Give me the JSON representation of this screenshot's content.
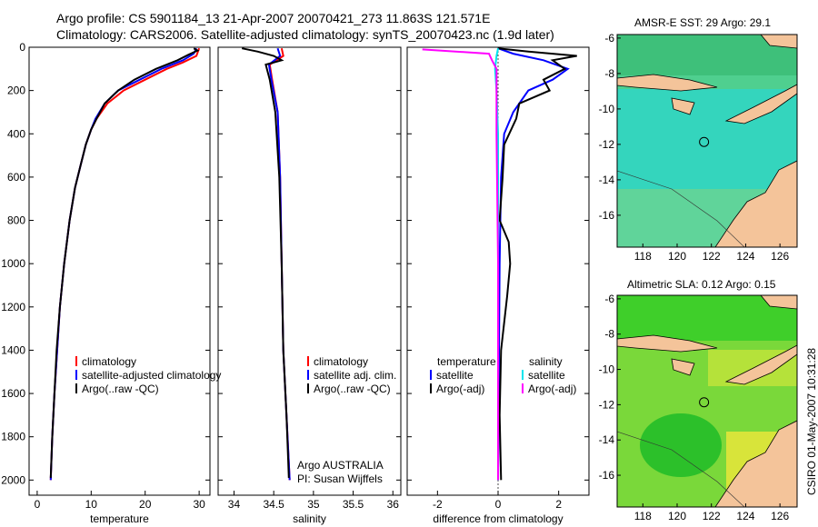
{
  "header": {
    "line1": "Argo profile: CS 5901184_13 21-Apr-2007 20070421_273 11.863S 121.571E",
    "line2": "Climatology: CARS2006. Satellite-adjusted climatology: synTS_20070423.nc (1.9d later)"
  },
  "credit": "CSIRO 01-May-2007 10:31:28",
  "colors": {
    "climatology": "#ff0000",
    "satellite": "#0000ff",
    "argo": "#000000",
    "sat_diff": "#00e5ee",
    "argo_adj": "#ff00ff"
  },
  "chart_data": [
    {
      "type": "line",
      "xlabel": "temperature",
      "ylabel": "",
      "xlim": [
        -1.5,
        32
      ],
      "ylim": [
        2070,
        0
      ],
      "xticks": [
        "0",
        "10",
        "20",
        "30"
      ],
      "yticks": [
        "0",
        "200",
        "400",
        "600",
        "800",
        "1000",
        "1200",
        "1400",
        "1600",
        "1800",
        "2000"
      ],
      "legend": [
        "climatology",
        "satellite-adjusted climatology",
        "Argo(..raw -QC)"
      ],
      "series": [
        {
          "name": "climatology",
          "color": "#ff0000",
          "points": [
            [
              30,
              5
            ],
            [
              29.5,
              40
            ],
            [
              27,
              70
            ],
            [
              24,
              100
            ],
            [
              20,
              150
            ],
            [
              16,
              200
            ],
            [
              13,
              260
            ],
            [
              11,
              330
            ],
            [
              10,
              380
            ],
            [
              9,
              450
            ],
            [
              8,
              550
            ],
            [
              7,
              650
            ],
            [
              6,
              800
            ],
            [
              5,
              1000
            ],
            [
              4.2,
              1200
            ],
            [
              3.7,
              1400
            ],
            [
              3.2,
              1600
            ],
            [
              2.8,
              1800
            ],
            [
              2.5,
              2000
            ]
          ]
        },
        {
          "name": "satellite-adjusted climatology",
          "color": "#0000ff",
          "points": [
            [
              29.5,
              5
            ],
            [
              29,
              30
            ],
            [
              27,
              60
            ],
            [
              23,
              100
            ],
            [
              19,
              150
            ],
            [
              15,
              200
            ],
            [
              12.5,
              260
            ],
            [
              10.8,
              330
            ],
            [
              10,
              380
            ],
            [
              9,
              450
            ],
            [
              8,
              550
            ],
            [
              7,
              650
            ],
            [
              6,
              800
            ],
            [
              5,
              1000
            ],
            [
              4.2,
              1200
            ],
            [
              3.7,
              1400
            ],
            [
              3.2,
              1600
            ],
            [
              2.8,
              1800
            ],
            [
              2.5,
              2000
            ]
          ]
        },
        {
          "name": "Argo(..raw -QC)",
          "color": "#000000",
          "points": [
            [
              29,
              5
            ],
            [
              29.7,
              15
            ],
            [
              28,
              35
            ],
            [
              26,
              60
            ],
            [
              22,
              100
            ],
            [
              18,
              150
            ],
            [
              15,
              200
            ],
            [
              12.5,
              260
            ],
            [
              11,
              330
            ],
            [
              10,
              380
            ],
            [
              9,
              450
            ],
            [
              8,
              550
            ],
            [
              7,
              650
            ],
            [
              6,
              800
            ],
            [
              5,
              1000
            ],
            [
              4.2,
              1200
            ],
            [
              3.6,
              1400
            ],
            [
              3.2,
              1600
            ],
            [
              2.8,
              1800
            ],
            [
              2.5,
              1990
            ]
          ]
        }
      ]
    },
    {
      "type": "line",
      "xlabel": "salinity",
      "ylabel": "",
      "xlim": [
        33.8,
        36.1
      ],
      "ylim": [
        2070,
        0
      ],
      "xticks": [
        "34",
        "34.5",
        "35",
        "35.5",
        "36"
      ],
      "legend": [
        "climatology",
        "satellite adj. clim.",
        "Argo(..raw -QC)"
      ],
      "annotation": [
        "Argo AUSTRALIA",
        "PI: Susan Wijffels"
      ],
      "series": [
        {
          "name": "climatology",
          "color": "#ff0000",
          "points": [
            [
              34.6,
              5
            ],
            [
              34.62,
              40
            ],
            [
              34.45,
              80
            ],
            [
              34.48,
              150
            ],
            [
              34.55,
              300
            ],
            [
              34.58,
              600
            ],
            [
              34.6,
              1000
            ],
            [
              34.62,
              1400
            ],
            [
              34.66,
              1700
            ],
            [
              34.7,
              2000
            ]
          ]
        },
        {
          "name": "satellite adj. clim.",
          "color": "#0000ff",
          "points": [
            [
              34.55,
              5
            ],
            [
              34.58,
              40
            ],
            [
              34.44,
              80
            ],
            [
              34.47,
              150
            ],
            [
              34.55,
              300
            ],
            [
              34.58,
              600
            ],
            [
              34.6,
              1000
            ],
            [
              34.62,
              1400
            ],
            [
              34.66,
              1700
            ],
            [
              34.7,
              2000
            ]
          ]
        },
        {
          "name": "Argo(..raw -QC)",
          "color": "#000000",
          "points": [
            [
              34.1,
              5
            ],
            [
              34.3,
              20
            ],
            [
              34.5,
              40
            ],
            [
              34.6,
              60
            ],
            [
              34.4,
              80
            ],
            [
              34.45,
              150
            ],
            [
              34.52,
              300
            ],
            [
              34.57,
              600
            ],
            [
              34.6,
              1000
            ],
            [
              34.62,
              1400
            ],
            [
              34.66,
              1700
            ],
            [
              34.69,
              1990
            ]
          ]
        }
      ]
    },
    {
      "type": "line",
      "xlabel": "difference from climatology",
      "ylabel": "",
      "xlim": [
        -3,
        3
      ],
      "ylim": [
        2070,
        0
      ],
      "xticks": [
        "-2",
        "0",
        "2"
      ],
      "legend_left_title": "temperature",
      "legend_right_title": "salinity",
      "legend": [
        "satellite",
        "Argo(-adj)",
        "satellite",
        "Argo(-adj)"
      ],
      "series": [
        {
          "name": "satellite",
          "quantity": "temperature",
          "color": "#0000ff",
          "points": [
            [
              0,
              5
            ],
            [
              0.5,
              30
            ],
            [
              1.5,
              60
            ],
            [
              2.3,
              100
            ],
            [
              1.8,
              150
            ],
            [
              1,
              200
            ],
            [
              0.5,
              300
            ],
            [
              0.2,
              400
            ],
            [
              0.1,
              600
            ],
            [
              0.05,
              1000
            ],
            [
              0,
              2000
            ]
          ]
        },
        {
          "name": "Argo(-adj)",
          "quantity": "temperature",
          "color": "#000000",
          "points": [
            [
              0,
              5
            ],
            [
              1,
              20
            ],
            [
              2.6,
              40
            ],
            [
              1.8,
              60
            ],
            [
              2.2,
              100
            ],
            [
              1.5,
              150
            ],
            [
              1.7,
              200
            ],
            [
              0.7,
              260
            ],
            [
              0.6,
              330
            ],
            [
              0.2,
              450
            ],
            [
              0.15,
              600
            ],
            [
              0.05,
              800
            ],
            [
              0.35,
              900
            ],
            [
              0.4,
              1000
            ],
            [
              0.3,
              1150
            ],
            [
              0.1,
              1400
            ],
            [
              0.05,
              1700
            ],
            [
              0.1,
              2000
            ]
          ]
        },
        {
          "name": "satellite",
          "quantity": "salinity",
          "color": "#00e5ee",
          "points": [
            [
              0,
              5
            ],
            [
              -0.05,
              40
            ],
            [
              -0.1,
              100
            ],
            [
              -0.05,
              200
            ],
            [
              0,
              400
            ],
            [
              0,
              1000
            ],
            [
              0,
              2000
            ]
          ]
        },
        {
          "name": "Argo(-adj)",
          "quantity": "salinity",
          "color": "#ff00ff",
          "points": [
            [
              -2.5,
              10
            ],
            [
              -0.3,
              30
            ],
            [
              -0.2,
              60
            ],
            [
              -0.05,
              100
            ],
            [
              -0.05,
              200
            ],
            [
              -0.05,
              400
            ],
            [
              0,
              1000
            ],
            [
              0,
              2000
            ]
          ]
        }
      ]
    }
  ],
  "maps": [
    {
      "title": "AMSR-E SST: 29 Argo: 29.1",
      "xticks": [
        "118",
        "120",
        "122",
        "124",
        "126"
      ],
      "yticks": [
        "-6",
        "-8",
        "-10",
        "-12",
        "-14",
        "-16"
      ],
      "marker": [
        121.571,
        -11.863
      ],
      "xlim": [
        116.5,
        127
      ],
      "ylim": [
        -17.8,
        -5.8
      ]
    },
    {
      "title": "Altimetric SLA: 0.12 Argo: 0.15",
      "xticks": [
        "118",
        "120",
        "122",
        "124",
        "126"
      ],
      "yticks": [
        "-6",
        "-8",
        "-10",
        "-12",
        "-14",
        "-16"
      ],
      "marker": [
        121.571,
        -11.863
      ],
      "xlim": [
        116.5,
        127
      ],
      "ylim": [
        -17.8,
        -5.8
      ]
    }
  ]
}
